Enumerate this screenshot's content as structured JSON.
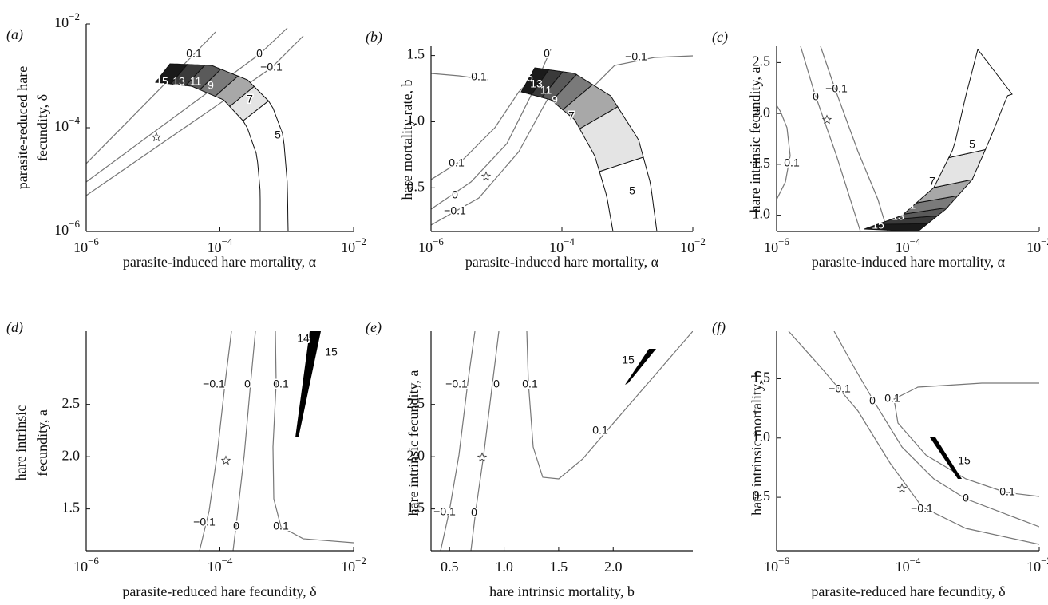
{
  "chart_data": [
    {
      "type": "contour",
      "panel_label": "(a)",
      "xlabel": "parasite-induced hare mortality, α",
      "ylabel": [
        "parasite-reduced hare",
        "fecundity, δ"
      ],
      "xlog": true,
      "ylog": true,
      "xlim": [
        1e-06,
        0.01
      ],
      "ylim": [
        1e-06,
        0.01
      ],
      "xticks": [
        {
          "value": 1e-06,
          "label": "10−6"
        },
        {
          "value": 0.0001,
          "label": "10−4"
        },
        {
          "value": 0.01,
          "label": "10−2"
        }
      ],
      "yticks": [
        {
          "value": 1e-06,
          "label": "10−6"
        },
        {
          "value": 0.0001,
          "label": "10−4"
        },
        {
          "value": 0.01,
          "label": "10−2"
        }
      ],
      "contour_labels": [
        0.1,
        0,
        {
          "value": -0.1,
          "label": "−0.1"
        },
        15,
        13,
        11,
        9,
        7,
        5
      ]
    },
    {
      "type": "contour",
      "panel_label": "(b)",
      "xlabel": "parasite-induced hare mortality, α",
      "ylabel": "hare mortality rate, b",
      "xlog": true,
      "ylog": false,
      "xlim": [
        1e-06,
        0.01
      ],
      "ylim": [
        0.17,
        1.57
      ],
      "xticks": [
        {
          "value": 1e-06,
          "label": "10−6"
        },
        {
          "value": 0.0001,
          "label": "10−4"
        },
        {
          "value": 0.01,
          "label": "10−2"
        }
      ],
      "yticks": [
        0.5,
        {
          "value": 1,
          "label": "1.0"
        },
        1.5
      ],
      "contour_labels": [
        0.1,
        0.1,
        0,
        {
          "value": -0.1,
          "label": "−0.1"
        },
        0,
        {
          "value": -0.1,
          "label": "−0.1"
        },
        15,
        13,
        11,
        9,
        7,
        5
      ]
    },
    {
      "type": "contour",
      "panel_label": "(c)",
      "xlabel": "parasite-induced hare mortality, α",
      "ylabel": "hare intrinsic fecundity, a",
      "xlog": true,
      "ylog": false,
      "xlim": [
        1e-06,
        0.01
      ],
      "ylim": [
        0.84,
        2.66
      ],
      "xticks": [
        {
          "value": 1e-06,
          "label": "10−6"
        },
        {
          "value": 0.0001,
          "label": "10−4"
        },
        {
          "value": 0.01,
          "label": "10−2"
        }
      ],
      "yticks": [
        {
          "value": 1,
          "label": "1.0"
        },
        1.5,
        {
          "value": 2,
          "label": "2.0"
        },
        2.5
      ],
      "contour_labels": [
        0.1,
        0,
        {
          "value": -0.1,
          "label": "−0.1"
        },
        5,
        7,
        9,
        11,
        13,
        15
      ]
    },
    {
      "type": "contour",
      "panel_label": "(d)",
      "xlabel": "parasite-reduced hare fecundity, δ",
      "ylabel": [
        "hare intrinsic",
        "fecundity, a"
      ],
      "xlog": true,
      "ylog": false,
      "xlim": [
        1e-06,
        0.01
      ],
      "ylim": [
        1.1,
        3.2
      ],
      "xticks": [
        {
          "value": 1e-06,
          "label": "10−6"
        },
        {
          "value": 0.0001,
          "label": "10−4"
        },
        {
          "value": 0.01,
          "label": "10−2"
        }
      ],
      "yticks": [
        1.5,
        {
          "value": 2,
          "label": "2.0"
        },
        2.5
      ],
      "contour_labels": [
        {
          "value": -0.1,
          "label": "−0.1"
        },
        0,
        0.1,
        14,
        15,
        {
          "value": -0.1,
          "label": "−0.1"
        },
        0,
        0.1
      ]
    },
    {
      "type": "contour",
      "panel_label": "(e)",
      "xlabel": "hare intrinsic mortality, b",
      "ylabel": "hare intrinsic fecundity, a",
      "xlog": false,
      "ylog": false,
      "xlim": [
        0.33,
        2.73
      ],
      "ylim": [
        1.1,
        3.2
      ],
      "xticks": [
        0.5,
        {
          "value": 1,
          "label": "1.0"
        },
        1.5,
        {
          "value": 2,
          "label": "2.0"
        }
      ],
      "yticks": [
        1.5,
        {
          "value": 2,
          "label": "2.0"
        },
        2.5
      ],
      "contour_labels": [
        15,
        {
          "value": -0.1,
          "label": "−0.1"
        },
        0,
        0.1,
        0.1,
        {
          "value": -0.1,
          "label": "−0.1"
        },
        0
      ]
    },
    {
      "type": "contour",
      "panel_label": "(f)",
      "xlabel": "parasite-reduced hare fecundity, δ",
      "ylabel": "hare intrinsic mortality, b",
      "xlog": true,
      "ylog": false,
      "xlim": [
        1e-06,
        0.01
      ],
      "ylim": [
        0.05,
        1.9
      ],
      "xticks": [
        {
          "value": 1e-06,
          "label": "10−6"
        },
        {
          "value": 0.0001,
          "label": "10−4"
        },
        {
          "value": 0.01,
          "label": "10−2"
        }
      ],
      "yticks": [
        0.5,
        {
          "value": 1,
          "label": "1.0"
        },
        1.5
      ],
      "contour_labels": [
        {
          "value": -0.1,
          "label": "−0.1"
        },
        0,
        0.1,
        15,
        0.1,
        0,
        {
          "value": -0.1,
          "label": "−0.1"
        }
      ]
    }
  ]
}
